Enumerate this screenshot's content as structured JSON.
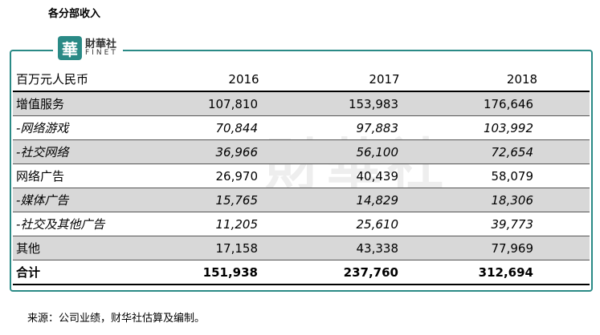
{
  "title": "各分部收入",
  "logo": {
    "name": "財華社",
    "sub": "FINET"
  },
  "table": {
    "header": [
      "百万元人民币",
      "2016",
      "2017",
      "2018"
    ],
    "rows": [
      [
        "增值服务",
        "107,810",
        "153,983",
        "176,646"
      ],
      [
        "-网络游戏",
        "70,844",
        "97,883",
        "103,992"
      ],
      [
        "-社交网络",
        "36,966",
        "56,100",
        "72,654"
      ],
      [
        "网络广告",
        "26,970",
        "40,439",
        "58,079"
      ],
      [
        "-媒体广告",
        "15,765",
        "14,829",
        "18,306"
      ],
      [
        "-社交及其他广告",
        "11,205",
        "25,610",
        "39,773"
      ],
      [
        "其他",
        "17,158",
        "43,338",
        "77,969"
      ],
      [
        "合计",
        "151,938",
        "237,760",
        "312,694"
      ]
    ]
  },
  "source": "来源：公司业绩，财华社估算及编制。"
}
